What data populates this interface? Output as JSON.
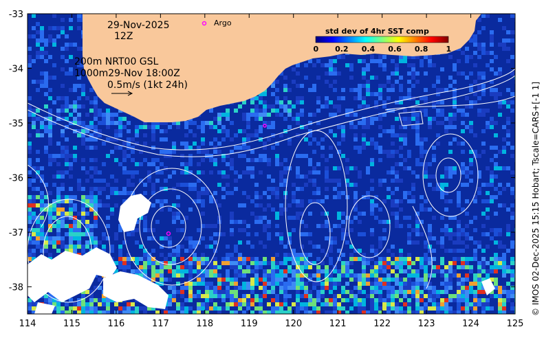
{
  "header": {
    "date": "29-Nov-2025",
    "hour": "12Z",
    "argo_label": "Argo"
  },
  "annotations": {
    "depth_line1": "200m  NRT00 GSL",
    "depth_line2": "1000m29-Nov 18:00Z",
    "vector_scale": "0.5m/s (1kt 24h)"
  },
  "colorbar": {
    "title": "std dev of 4hr SST comp",
    "ticks": [
      "0",
      "0.2",
      "0.4",
      "0.6",
      "0.8",
      "1"
    ]
  },
  "axes": {
    "x_ticks": [
      "114",
      "115",
      "116",
      "117",
      "118",
      "119",
      "120",
      "121",
      "122",
      "123",
      "124",
      "125"
    ],
    "y_ticks": [
      "-33",
      "-34",
      "-35",
      "-36",
      "-37",
      "-38"
    ]
  },
  "credit": "© IMOS 02-Dec-2025 15:15 Hobart; Tscale=CARS+[-1 1]",
  "colors": {
    "land": "#f9c89b",
    "ocean": "#0a2a9e",
    "contour": "#ffffff",
    "argo": "#ff00ff"
  }
}
